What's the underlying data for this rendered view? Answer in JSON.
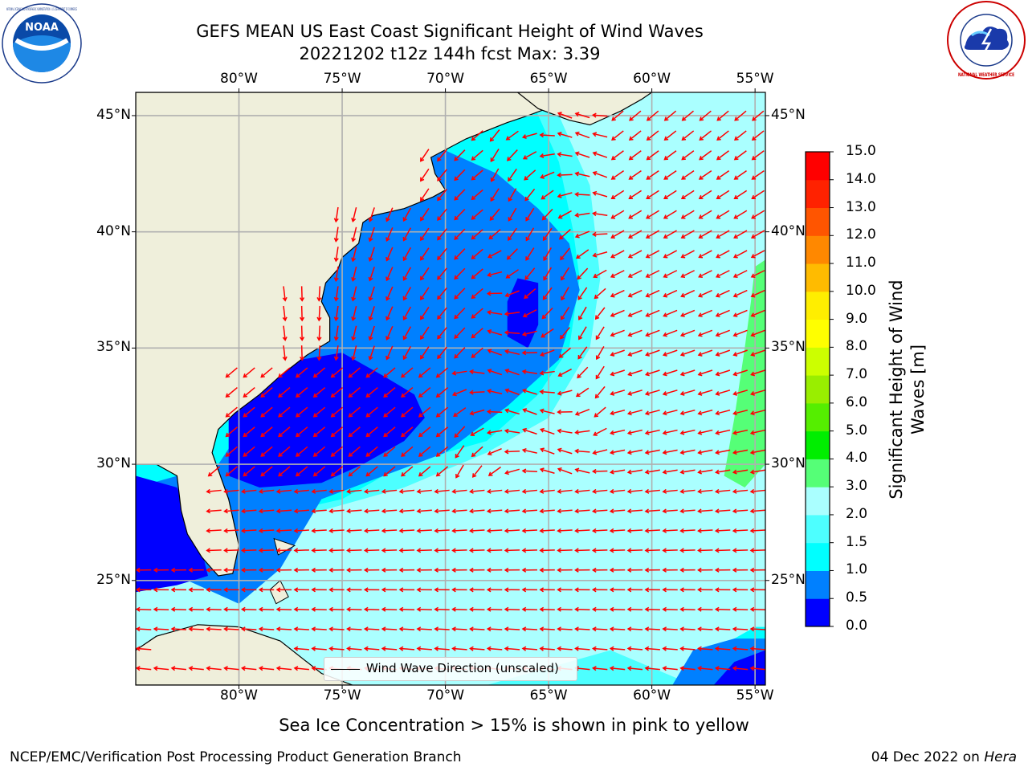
{
  "title": {
    "line1": "GEFS MEAN US East Coast Significant Height of Wind Waves",
    "line2": "20221202 t12z 144h fcst   Max: 3.39"
  },
  "logos": {
    "left": "noaa-logo",
    "right": "national-weather-service-logo",
    "left_text": "NOAA",
    "left_ring_text": "NATIONAL OCEANIC AND ATMOSPHERIC ADMINISTRATION · U.S. DEPARTMENT OF COMMERCE",
    "right_ring_text": "NATIONAL WEATHER SERVICE"
  },
  "map": {
    "lon_ticks": [
      "80°W",
      "75°W",
      "70°W",
      "65°W",
      "60°W",
      "55°W"
    ],
    "lat_ticks": [
      "45°N",
      "40°N",
      "35°N",
      "30°N",
      "25°N"
    ],
    "lon_range": [
      -85,
      -54.5
    ],
    "lat_range": [
      20.5,
      46
    ],
    "land_color": "#efefdb",
    "coast_color": "#000000",
    "arrow_color": "#ff0000",
    "grid_color": "#b0b0b0"
  },
  "legend": {
    "label": "Wind Wave Direction (unscaled)"
  },
  "colorbar": {
    "title_line1": "Significant Height of Wind",
    "title_line2": "Waves [m]",
    "tick_labels": [
      "0.0",
      "0.5",
      "1.0",
      "1.5",
      "2.0",
      "3.0",
      "4.0",
      "5.0",
      "6.0",
      "7.0",
      "8.0",
      "9.0",
      "10.0",
      "11.0",
      "12.0",
      "13.0",
      "14.0",
      "15.0"
    ],
    "colors": [
      "#0000ff",
      "#0080ff",
      "#00ffff",
      "#4dffff",
      "#aaffff",
      "#55ff77",
      "#00ee00",
      "#55ee00",
      "#99ee00",
      "#ccff00",
      "#ffff00",
      "#ffee00",
      "#ffbb00",
      "#ff8800",
      "#ff5500",
      "#ff2200",
      "#ff0000"
    ]
  },
  "chart_data": {
    "type": "heatmap",
    "variable": "Significant Height of Wind Waves [m]",
    "max": 3.39,
    "levels": [
      0.0,
      0.5,
      1.0,
      1.5,
      2.0,
      3.0,
      4.0,
      5.0,
      6.0,
      7.0,
      8.0,
      9.0,
      10.0,
      11.0,
      12.0,
      13.0,
      14.0,
      15.0
    ]
  },
  "caption": "Sea Ice Concentration > 15% is shown in pink to yellow",
  "footer": {
    "left": "NCEP/EMC/Verification Post Processing Product Generation Branch",
    "date": "04 Dec 2022 on",
    "host": "Hera"
  }
}
